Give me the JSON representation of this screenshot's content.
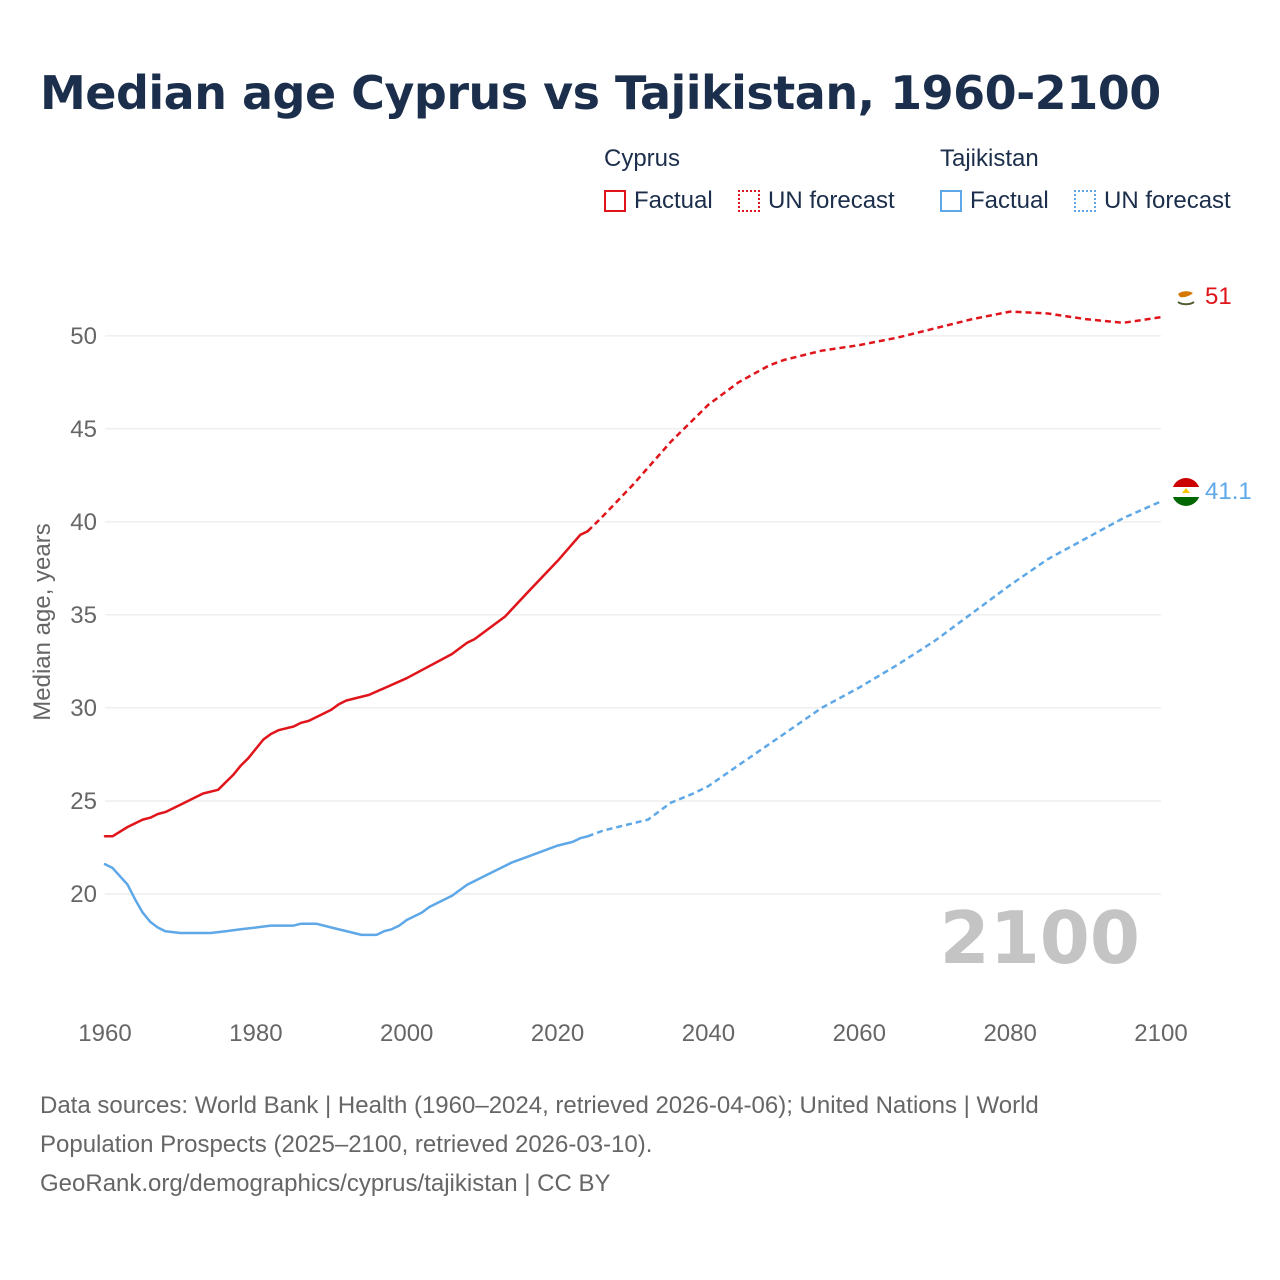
{
  "title": "Median age Cyprus vs Tajikistan, 1960-2100",
  "legend": {
    "cyprus": {
      "name": "Cyprus",
      "factual": "Factual",
      "forecast": "UN forecast"
    },
    "tajikistan": {
      "name": "Tajikistan",
      "factual": "Factual",
      "forecast": "UN forecast"
    }
  },
  "colors": {
    "cyprus": "#e0151b",
    "tajikistan": "#5fa8e8",
    "grid": "#e6e6e6",
    "axis_text": "#666666",
    "year_watermark": "#c4c4c4"
  },
  "sources": {
    "line1": "Data sources: World Bank | Health (1960–2024, retrieved 2026-04-06); United Nations | World",
    "line2": "Population Prospects (2025–2100, retrieved 2026-03-10).",
    "line3": "GeoRank.org/demographics/cyprus/tajikistan | CC BY"
  },
  "chart_data": {
    "type": "line",
    "title": "Median age Cyprus vs Tajikistan, 1960-2100",
    "xlabel": "",
    "ylabel": "Median age, years",
    "xlim": [
      1960,
      2100
    ],
    "ylim": [
      15,
      53
    ],
    "x_ticks": [
      1960,
      1980,
      2000,
      2020,
      2040,
      2060,
      2080,
      2100
    ],
    "y_ticks": [
      20,
      25,
      30,
      35,
      40,
      45,
      50
    ],
    "grid": "horizontal",
    "current_year": "2100",
    "factual_until": 2024,
    "series": [
      {
        "name": "Cyprus",
        "color": "#e0151b",
        "end_label": "51",
        "flag_icon": "cyprus-flag-icon",
        "points": [
          [
            1960,
            23.1
          ],
          [
            1961,
            23.1
          ],
          [
            1963,
            23.6
          ],
          [
            1965,
            24.0
          ],
          [
            1966,
            24.1
          ],
          [
            1967,
            24.3
          ],
          [
            1968,
            24.4
          ],
          [
            1970,
            24.8
          ],
          [
            1972,
            25.2
          ],
          [
            1973,
            25.4
          ],
          [
            1975,
            25.6
          ],
          [
            1977,
            26.4
          ],
          [
            1978,
            26.9
          ],
          [
            1979,
            27.3
          ],
          [
            1981,
            28.3
          ],
          [
            1982,
            28.6
          ],
          [
            1983,
            28.8
          ],
          [
            1985,
            29.0
          ],
          [
            1986,
            29.2
          ],
          [
            1987,
            29.3
          ],
          [
            1989,
            29.7
          ],
          [
            1990,
            29.9
          ],
          [
            1991,
            30.2
          ],
          [
            1992,
            30.4
          ],
          [
            1995,
            30.7
          ],
          [
            2000,
            31.6
          ],
          [
            2006,
            32.9
          ],
          [
            2008,
            33.5
          ],
          [
            2009,
            33.7
          ],
          [
            2013,
            34.9
          ],
          [
            2016,
            36.2
          ],
          [
            2020,
            37.9
          ],
          [
            2023,
            39.3
          ],
          [
            2024,
            39.5
          ],
          [
            2026,
            40.3
          ],
          [
            2030,
            42.0
          ],
          [
            2035,
            44.3
          ],
          [
            2040,
            46.3
          ],
          [
            2044,
            47.5
          ],
          [
            2048,
            48.4
          ],
          [
            2050,
            48.7
          ],
          [
            2055,
            49.2
          ],
          [
            2060,
            49.5
          ],
          [
            2065,
            49.9
          ],
          [
            2070,
            50.4
          ],
          [
            2075,
            50.9
          ],
          [
            2080,
            51.3
          ],
          [
            2085,
            51.2
          ],
          [
            2090,
            50.9
          ],
          [
            2095,
            50.7
          ],
          [
            2100,
            51.0
          ]
        ]
      },
      {
        "name": "Tajikistan",
        "color": "#5fa8e8",
        "end_label": "41.1",
        "flag_icon": "tajikistan-flag-icon",
        "points": [
          [
            1960,
            21.6
          ],
          [
            1961,
            21.4
          ],
          [
            1963,
            20.5
          ],
          [
            1964,
            19.7
          ],
          [
            1965,
            19.0
          ],
          [
            1966,
            18.5
          ],
          [
            1967,
            18.2
          ],
          [
            1968,
            18.0
          ],
          [
            1970,
            17.9
          ],
          [
            1974,
            17.9
          ],
          [
            1976,
            18.0
          ],
          [
            1978,
            18.1
          ],
          [
            1980,
            18.2
          ],
          [
            1982,
            18.3
          ],
          [
            1985,
            18.3
          ],
          [
            1986,
            18.4
          ],
          [
            1988,
            18.4
          ],
          [
            1990,
            18.2
          ],
          [
            1993,
            17.9
          ],
          [
            1994,
            17.8
          ],
          [
            1996,
            17.8
          ],
          [
            1997,
            18.0
          ],
          [
            1998,
            18.1
          ],
          [
            1999,
            18.3
          ],
          [
            2000,
            18.6
          ],
          [
            2002,
            19.0
          ],
          [
            2003,
            19.3
          ],
          [
            2006,
            19.9
          ],
          [
            2008,
            20.5
          ],
          [
            2010,
            20.9
          ],
          [
            2012,
            21.3
          ],
          [
            2014,
            21.7
          ],
          [
            2016,
            22.0
          ],
          [
            2018,
            22.3
          ],
          [
            2020,
            22.6
          ],
          [
            2022,
            22.8
          ],
          [
            2023,
            23.0
          ],
          [
            2024,
            23.1
          ],
          [
            2026,
            23.4
          ],
          [
            2030,
            23.8
          ],
          [
            2032,
            24.0
          ],
          [
            2035,
            24.9
          ],
          [
            2038,
            25.4
          ],
          [
            2040,
            25.8
          ],
          [
            2045,
            27.2
          ],
          [
            2050,
            28.6
          ],
          [
            2055,
            30.0
          ],
          [
            2060,
            31.1
          ],
          [
            2065,
            32.3
          ],
          [
            2070,
            33.6
          ],
          [
            2075,
            35.1
          ],
          [
            2080,
            36.6
          ],
          [
            2085,
            38.0
          ],
          [
            2090,
            39.1
          ],
          [
            2095,
            40.2
          ],
          [
            2100,
            41.1
          ]
        ]
      }
    ]
  }
}
